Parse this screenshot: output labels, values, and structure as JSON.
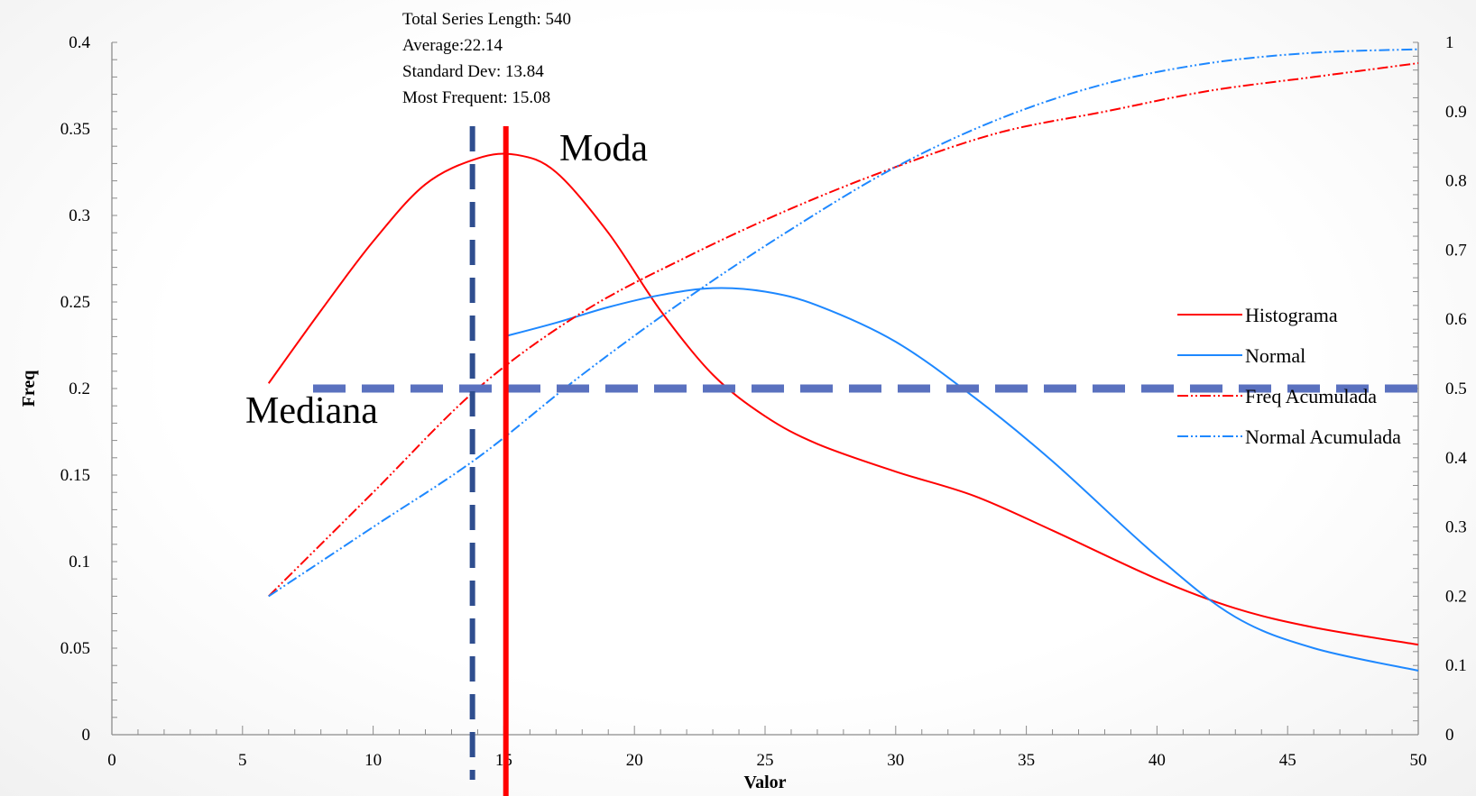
{
  "chart_data": {
    "type": "line",
    "xlabel": "Valor",
    "ylabel": "Freq",
    "xlim": [
      0,
      50
    ],
    "ylim": [
      0,
      0.4
    ],
    "y2lim": [
      0,
      1
    ],
    "x_ticks": [
      "0",
      "5",
      "10",
      "15",
      "20",
      "25",
      "30",
      "35",
      "40",
      "45",
      "50"
    ],
    "y_ticks": [
      "0",
      "0.05",
      "0.1",
      "0.15",
      "0.2",
      "0.25",
      "0.3",
      "0.35",
      "0.4"
    ],
    "y2_ticks": [
      "0",
      "0.1",
      "0.2",
      "0.3",
      "0.4",
      "0.5",
      "0.6",
      "0.7",
      "0.8",
      "0.9",
      "1"
    ],
    "stats": [
      "Total Series Length:  540",
      "Average:22.14",
      "Standard Dev: 13.84",
      "Most Frequent: 15.08"
    ],
    "annotations": {
      "moda": "Moda",
      "mediana": "Mediana"
    },
    "reference_lines": {
      "median_x": 13.8,
      "mode_x": 15.08,
      "half_y2": 0.5
    },
    "legend_position": "right",
    "series": [
      {
        "name": "Histograma",
        "axis": "left",
        "style": "solid",
        "color": "#ff0000",
        "x": [
          6,
          8,
          10,
          12,
          14,
          15.5,
          17,
          19,
          21,
          23,
          25,
          27,
          30,
          33,
          36,
          40,
          43,
          46,
          50
        ],
        "y": [
          0.203,
          0.245,
          0.285,
          0.318,
          0.333,
          0.335,
          0.325,
          0.29,
          0.245,
          0.208,
          0.184,
          0.168,
          0.152,
          0.138,
          0.118,
          0.09,
          0.073,
          0.062,
          0.052
        ]
      },
      {
        "name": "Normal",
        "axis": "left",
        "style": "solid",
        "color": "#1e88ff",
        "x": [
          15,
          17,
          19,
          21,
          23,
          25,
          27,
          30,
          33,
          36,
          40,
          43,
          46,
          50
        ],
        "y": [
          0.23,
          0.238,
          0.247,
          0.254,
          0.258,
          0.256,
          0.248,
          0.227,
          0.195,
          0.158,
          0.103,
          0.068,
          0.05,
          0.037
        ]
      },
      {
        "name": "Freq Acumulada",
        "axis": "right",
        "style": "dash-dot-dot",
        "color": "#ff0000",
        "x": [
          6,
          10,
          14,
          18,
          22,
          26,
          30,
          34,
          38,
          42,
          46,
          50
        ],
        "y": [
          0.2,
          0.35,
          0.5,
          0.61,
          0.69,
          0.76,
          0.82,
          0.87,
          0.9,
          0.93,
          0.95,
          0.97
        ]
      },
      {
        "name": "Normal Acumulada",
        "axis": "right",
        "style": "dash-dot-dot",
        "color": "#1e88ff",
        "x": [
          6,
          10,
          14,
          18,
          22,
          26,
          30,
          34,
          38,
          42,
          46,
          50
        ],
        "y": [
          0.2,
          0.3,
          0.4,
          0.52,
          0.63,
          0.73,
          0.82,
          0.89,
          0.94,
          0.97,
          0.985,
          0.99
        ]
      }
    ]
  }
}
